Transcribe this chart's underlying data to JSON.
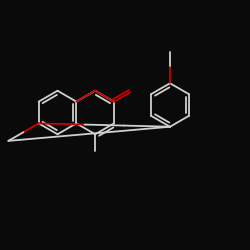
{
  "bg_color": "#0a0a0a",
  "bond_color": "#d0d0d0",
  "oxygen_color": "#cc0000",
  "lw": 1.3,
  "figsize": [
    2.5,
    2.5
  ],
  "dpi": 100,
  "xlim": [
    0,
    10
  ],
  "ylim": [
    0,
    10
  ]
}
